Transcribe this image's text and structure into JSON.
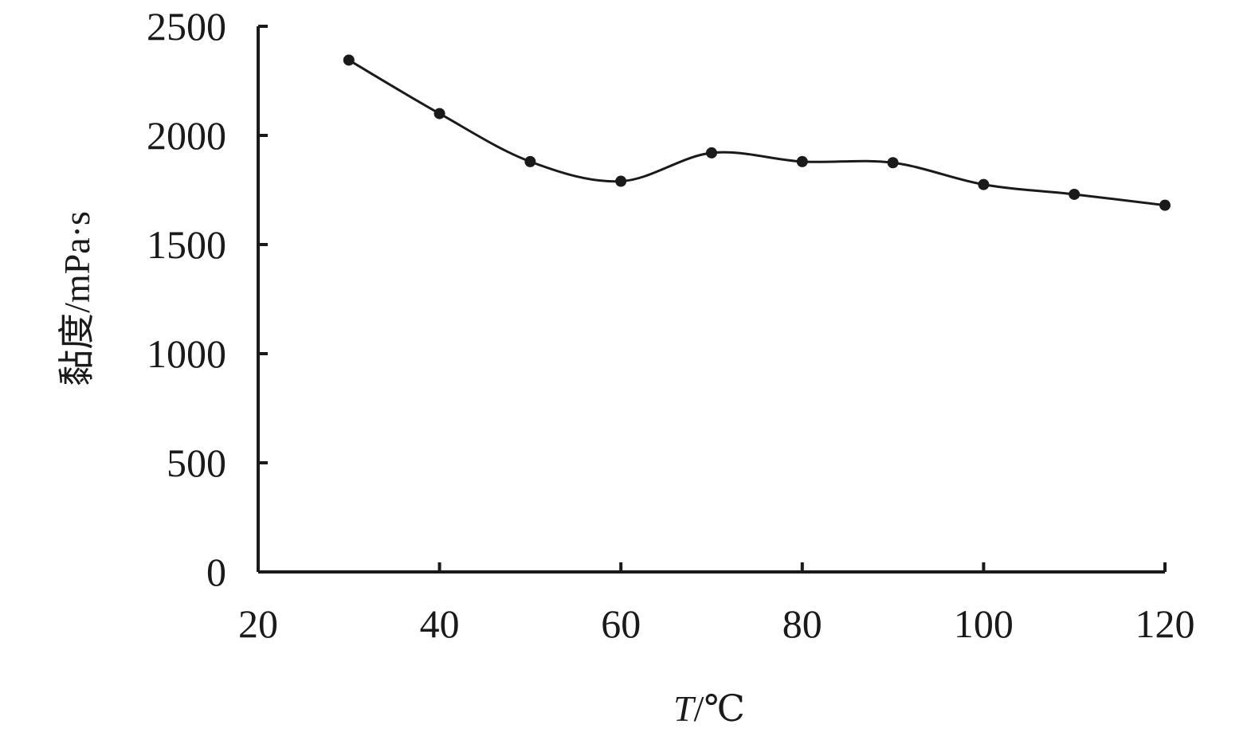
{
  "chart_data": {
    "type": "line",
    "xlabel_italic": "T",
    "xlabel_unit": "/℃",
    "ylabel": "黏度/mPa·s",
    "xlim": [
      20,
      120
    ],
    "ylim": [
      0,
      2500
    ],
    "xticks": [
      20,
      40,
      60,
      80,
      100,
      120
    ],
    "yticks": [
      0,
      500,
      1000,
      1500,
      2000,
      2500
    ],
    "grid": false,
    "series": [
      {
        "x": [
          30,
          40,
          50,
          60,
          70,
          80,
          90,
          100,
          110,
          120
        ],
        "y": [
          2345,
          2100,
          1880,
          1790,
          1920,
          1880,
          1875,
          1775,
          1730,
          1680
        ],
        "color": "#1a1a1a",
        "marker": "circle",
        "smooth": true
      }
    ]
  }
}
